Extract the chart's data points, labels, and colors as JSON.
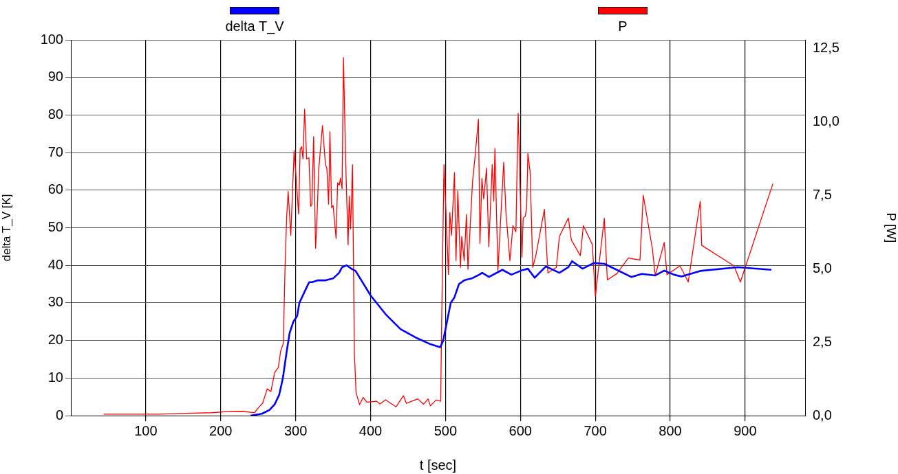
{
  "chart_data": {
    "type": "line",
    "xlabel": "t [sec]",
    "ylabel": "delta T_V [K]",
    "y2label": "P [W]",
    "xlim": [
      0,
      980
    ],
    "xticks": [
      100,
      200,
      300,
      400,
      500,
      600,
      700,
      800,
      900
    ],
    "ylim": [
      0,
      100
    ],
    "yticks": [
      0,
      10,
      20,
      30,
      40,
      50,
      60,
      70,
      80,
      90,
      100
    ],
    "y2lim": [
      0,
      12.8
    ],
    "y2ticks": [
      {
        "value": 0,
        "label": "0,0"
      },
      {
        "value": 2.5,
        "label": "2,5"
      },
      {
        "value": 5,
        "label": "5,0"
      },
      {
        "value": 7.5,
        "label": "7,5"
      },
      {
        "value": 10,
        "label": "10,0"
      },
      {
        "value": 12.5,
        "label": "12,5"
      }
    ],
    "grid": true,
    "legend": "top",
    "marker": "none",
    "line_style": "solid",
    "series": [
      {
        "name": "delta T_V",
        "color": "#0000ff",
        "x": [
          240,
          255,
          265,
          272,
          278,
          283,
          288,
          292,
          297,
          302,
          305,
          312,
          318,
          322,
          330,
          340,
          350,
          358,
          362,
          368,
          375,
          380,
          400,
          420,
          440,
          460,
          480,
          493,
          497,
          502,
          507,
          512,
          518,
          525,
          535,
          545,
          549,
          558,
          576,
          588,
          601,
          610,
          619,
          634,
          652,
          664,
          669,
          683,
          698,
          712,
          748,
          762,
          780,
          792,
          805,
          815,
          840,
          890,
          935
        ],
        "values": [
          0,
          0.5,
          1.5,
          3,
          5.5,
          10,
          17,
          22,
          25,
          26.5,
          30,
          33,
          35.5,
          35.5,
          36,
          36,
          36.5,
          38,
          39.5,
          40,
          39,
          38.5,
          32,
          27,
          23,
          20.8,
          19,
          18.2,
          20,
          25,
          30,
          31.5,
          35,
          36,
          36.5,
          37.5,
          38,
          36.9,
          38.8,
          37.5,
          38.6,
          39.1,
          36.7,
          39.7,
          38,
          39.5,
          41.1,
          39.1,
          40.6,
          40.4,
          36.9,
          37.7,
          37.3,
          38.6,
          37.5,
          37,
          38.5,
          39.5,
          38.8
        ]
      },
      {
        "name": "P",
        "color": "#ff0000",
        "axis": "y2",
        "x": [
          44,
          117,
          188,
          206,
          229,
          245,
          251,
          256,
          262,
          267,
          272,
          277,
          280,
          283.5,
          286,
          288,
          290,
          293.5,
          298,
          304,
          306,
          308,
          309.8,
          312,
          314.7,
          317.8,
          320,
          321.7,
          324,
          326.6,
          328,
          330.7,
          335.8,
          339.8,
          341.7,
          344,
          345.8,
          348,
          350,
          354,
          356,
          358.3,
          359.7,
          362,
          363.8,
          367,
          370,
          371.6,
          373.4,
          375.9,
          378.4,
          380.7,
          385.3,
          390,
          395,
          408,
          412.5,
          420,
          434,
          444,
          447.7,
          463,
          470.6,
          476.8,
          479.8,
          487.4,
          493.6,
          495,
          498,
          504,
          505.8,
          508,
          512,
          514,
          516.5,
          520,
          521.7,
          525,
          528,
          530,
          536,
          539.6,
          544,
          546,
          548.6,
          551,
          554.8,
          557.8,
          562.4,
          564.5,
          566,
          570,
          577.7,
          580.7,
          586,
          590,
          594,
          597,
          602,
          603.7,
          606.6,
          608.3,
          610,
          613,
          616.5,
          620.5,
          632,
          636.7,
          648,
          652,
          664,
          668,
          680,
          684,
          696,
          700,
          712,
          716,
          729,
          744,
          759.6,
          764,
          776,
          780,
          792,
          795.6,
          813,
          824,
          840,
          842,
          885,
          893.6,
          937
        ],
        "values": [
          0.05,
          0.05,
          0.1,
          0.13,
          0.14,
          0.1,
          0.29,
          0.42,
          0.91,
          0.82,
          1.47,
          1.64,
          2.2,
          2.45,
          5.2,
          6.75,
          7.64,
          6.14,
          9.03,
          6.87,
          9.07,
          9.16,
          8.74,
          10.44,
          8.74,
          8.78,
          7.13,
          7.2,
          9.5,
          5.7,
          6.35,
          8.34,
          9.88,
          8.55,
          8.42,
          7.2,
          9.67,
          7.08,
          7.16,
          6.03,
          7.93,
          7.85,
          8.09,
          7.73,
          12.2,
          8.46,
          5.82,
          7.48,
          6.36,
          8.55,
          2.13,
          0.78,
          0.37,
          0.62,
          0.46,
          0.49,
          0.4,
          0.54,
          0.3,
          0.68,
          0.42,
          0.57,
          0.39,
          0.57,
          0.33,
          0.53,
          0.49,
          3.41,
          8.55,
          4.81,
          6.92,
          6.14,
          8.28,
          5.28,
          7.66,
          5.05,
          6.1,
          5.28,
          6.85,
          4.98,
          7.93,
          8.86,
          10.1,
          5.86,
          8.08,
          7.38,
          8.43,
          5.75,
          8.55,
          7.31,
          9.1,
          4.93,
          8.63,
          6.92,
          5.28,
          6.47,
          6.26,
          10.3,
          5.4,
          6.73,
          6.8,
          7.08,
          8.93,
          8.28,
          5.05,
          5.44,
          7.03,
          4.86,
          5.05,
          6.1,
          6.73,
          5.98,
          5.45,
          6.47,
          5.83,
          4.07,
          6.72,
          4.62,
          4.84,
          5.37,
          5.3,
          7.5,
          5.71,
          4.77,
          5.9,
          4.8,
          5.1,
          4.55,
          7.3,
          5.8,
          5.1,
          4.55,
          7.9
        ]
      }
    ]
  }
}
